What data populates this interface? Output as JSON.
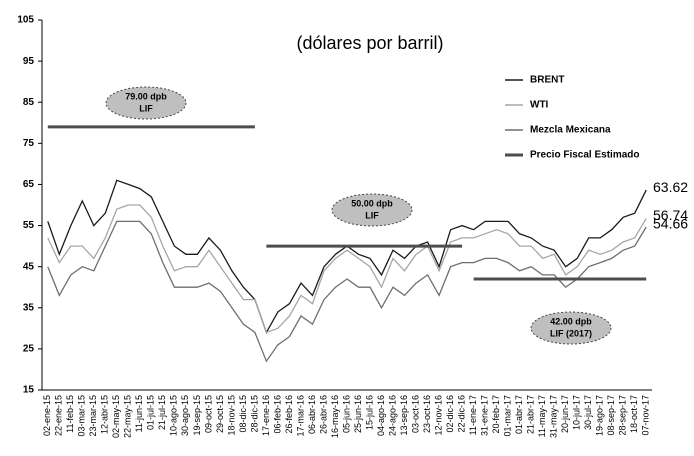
{
  "chart_data": {
    "type": "line",
    "title": "(dólares por barril)",
    "categories": [
      "02-ene-15",
      "22-ene-15",
      "11-feb-15",
      "03-mar-15",
      "23-mar-15",
      "12-abr-15",
      "02-may-15",
      "22-may-15",
      "11-jun-15",
      "01-jul-15",
      "21-jul-15",
      "10-ago-15",
      "30-ago-15",
      "19-sep-15",
      "09-oct-15",
      "29-oct-15",
      "18-nov-15",
      "08-dic-15",
      "28-dic-15",
      "17-ene-16",
      "06-feb-16",
      "26-feb-16",
      "17-mar-16",
      "06-abr-16",
      "26-abr-16",
      "16-may-16",
      "05-jun-16",
      "25-jun-16",
      "15-jul-16",
      "04-ago-16",
      "24-ago-16",
      "13-sep-16",
      "03-oct-16",
      "23-oct-16",
      "12-nov-16",
      "02-dic-16",
      "22-dic-16",
      "11-ene-17",
      "31-ene-17",
      "20-feb-17",
      "01-mar-17",
      "01-abr-17",
      "21-abr-17",
      "11-may-17",
      "31-may-17",
      "20-jun-17",
      "10-jul-17",
      "30-jul-17",
      "19-ago-17",
      "08-sep-17",
      "28-sep-17",
      "18-oct-17",
      "07-nov-17"
    ],
    "series": [
      {
        "name": "BRENT",
        "color": "#1a1a1a",
        "values": [
          56,
          48,
          55,
          61,
          55,
          58,
          66,
          65,
          64,
          62,
          56,
          50,
          48,
          48,
          52,
          49,
          44,
          40,
          37,
          29,
          34,
          36,
          41,
          38,
          45,
          48,
          50,
          48,
          47,
          43,
          49,
          47,
          50,
          51,
          45,
          54,
          55,
          54,
          56,
          56,
          56,
          53,
          52,
          50,
          49,
          45,
          47,
          52,
          52,
          54,
          57,
          58,
          63.62
        ]
      },
      {
        "name": "WTI",
        "color": "#a6a6a6",
        "values": [
          52,
          46,
          50,
          50,
          47,
          52,
          59,
          60,
          60,
          57,
          50,
          44,
          45,
          45,
          49,
          45,
          41,
          37,
          37,
          29,
          30,
          33,
          38,
          36,
          44,
          47,
          49,
          47,
          45,
          40,
          47,
          44,
          48,
          50,
          44,
          51,
          52,
          52,
          53,
          54,
          53,
          50,
          50,
          47,
          48,
          43,
          45,
          49,
          48,
          49,
          51,
          52,
          56.74
        ]
      },
      {
        "name": "Mezcla Mexicana",
        "color": "#6e6e6e",
        "values": [
          45,
          38,
          43,
          45,
          44,
          50,
          56,
          56,
          56,
          53,
          46,
          40,
          40,
          40,
          41,
          39,
          35,
          31,
          29,
          22,
          26,
          28,
          33,
          31,
          37,
          40,
          42,
          40,
          40,
          35,
          40,
          38,
          41,
          43,
          38,
          45,
          46,
          46,
          47,
          47,
          46,
          44,
          45,
          43,
          43,
          40,
          42,
          45,
          46,
          47,
          49,
          50,
          54.66
        ]
      },
      {
        "name": "Precio Fiscal Estimado",
        "color": "#4d4d4d",
        "values": [
          79,
          79,
          79,
          79,
          79,
          79,
          79,
          79,
          79,
          79,
          79,
          79,
          79,
          79,
          79,
          79,
          79,
          79,
          79,
          50,
          50,
          50,
          50,
          50,
          50,
          50,
          50,
          50,
          50,
          50,
          50,
          50,
          50,
          50,
          50,
          50,
          50,
          42,
          42,
          42,
          42,
          42,
          42,
          42,
          42,
          42,
          42,
          42,
          42,
          42,
          42,
          42,
          42
        ]
      }
    ],
    "annotations": [
      {
        "lines": [
          "79.00 dpb",
          "LIF"
        ]
      },
      {
        "lines": [
          "50.00 dpb",
          "LIF"
        ]
      },
      {
        "lines": [
          "42.00 dpb",
          "LIF (2017)"
        ]
      }
    ],
    "ylim": [
      15,
      105
    ],
    "yticks": [
      15,
      25,
      35,
      45,
      55,
      65,
      75,
      85,
      95,
      105
    ]
  }
}
